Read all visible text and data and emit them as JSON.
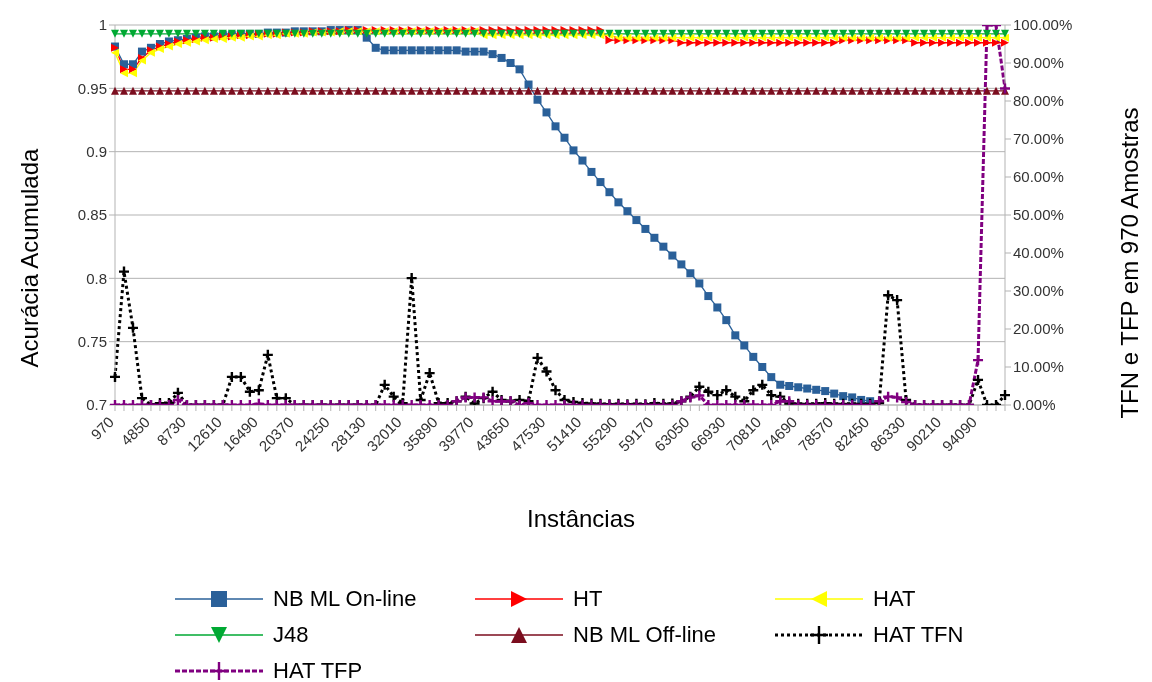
{
  "chart_data": {
    "type": "line",
    "xlabel": "Instâncias",
    "ylabel": "Acurácia Acumulada",
    "y2label": "TFN e TFP em 970 Amostras",
    "categories": [
      "970",
      null,
      null,
      null,
      "4850",
      null,
      null,
      null,
      "8730",
      null,
      null,
      null,
      "12610",
      null,
      null,
      null,
      "16490",
      null,
      null,
      null,
      "20370",
      null,
      null,
      null,
      "24250",
      null,
      null,
      null,
      "28130",
      null,
      null,
      null,
      "32010",
      null,
      null,
      null,
      "35890",
      null,
      null,
      null,
      "39770",
      null,
      null,
      null,
      "43650",
      null,
      null,
      null,
      "47530",
      null,
      null,
      null,
      "51410",
      null,
      null,
      null,
      "55290",
      null,
      null,
      null,
      "59170",
      null,
      null,
      null,
      "63050",
      null,
      null,
      null,
      "66930",
      null,
      null,
      null,
      "70810",
      null,
      null,
      null,
      "74690",
      null,
      null,
      null,
      "78570",
      null,
      null,
      null,
      "82450",
      null,
      null,
      null,
      "86330",
      null,
      null,
      null,
      "90210",
      null,
      null,
      null,
      "94090",
      null,
      null,
      null
    ],
    "ylim": [
      0.7,
      1
    ],
    "yticks": [
      0.7,
      0.75,
      0.8,
      0.85,
      0.9,
      0.95,
      1
    ],
    "y2lim": [
      0,
      100
    ],
    "y2ticks": [
      {
        "value": 0,
        "label": "0.00%"
      },
      {
        "value": 10,
        "label": "10.00%"
      },
      {
        "value": 20,
        "label": "20.00%"
      },
      {
        "value": 30,
        "label": "30.00%"
      },
      {
        "value": 40,
        "label": "40.00%"
      },
      {
        "value": 50,
        "label": "50.00%"
      },
      {
        "value": 60,
        "label": "60.00%"
      },
      {
        "value": 70,
        "label": "70.00%"
      },
      {
        "value": 80,
        "label": "80.00%"
      },
      {
        "value": 90,
        "label": "90.00%"
      },
      {
        "value": 100,
        "label": "100.00%"
      }
    ],
    "grid": "y",
    "legend": "bottom",
    "series": [
      {
        "name": "NB ML On-line",
        "color": "#2a6099",
        "marker": "square",
        "line_style": "solid",
        "values": [
          0.983,
          0.969,
          0.969,
          0.979,
          0.982,
          0.985,
          0.987,
          0.988,
          0.989,
          0.99,
          0.991,
          0.991,
          0.992,
          0.992,
          0.993,
          0.993,
          0.993,
          0.994,
          0.994,
          0.994,
          0.995,
          0.995,
          0.995,
          0.995,
          0.996,
          0.996,
          0.996,
          0.996,
          0.99,
          0.982,
          0.98,
          0.98,
          0.98,
          0.98,
          0.98,
          0.98,
          0.98,
          0.98,
          0.98,
          0.979,
          0.979,
          0.979,
          0.977,
          0.974,
          0.97,
          0.965,
          0.953,
          0.941,
          0.931,
          0.92,
          0.911,
          0.901,
          0.893,
          0.884,
          0.876,
          0.868,
          0.86,
          0.853,
          0.846,
          0.839,
          0.832,
          0.825,
          0.818,
          0.811,
          0.804,
          0.796,
          0.786,
          0.777,
          0.767,
          0.755,
          0.747,
          0.738,
          0.73,
          0.722,
          0.716,
          0.715,
          0.714,
          0.713,
          0.712,
          0.711,
          0.709,
          0.707,
          0.706,
          0.704,
          0.703,
          null,
          null,
          null,
          null,
          null,
          null,
          null,
          null,
          null,
          null,
          null,
          null,
          null,
          null,
          null
        ]
      },
      {
        "name": "HT",
        "color": "#ff0000",
        "marker": "triangle-right",
        "line_style": "solid",
        "values": [
          0.982,
          0.965,
          0.965,
          0.974,
          0.98,
          0.983,
          0.985,
          0.987,
          0.988,
          0.989,
          0.99,
          0.99,
          0.991,
          0.991,
          0.992,
          0.992,
          0.993,
          0.993,
          0.993,
          0.994,
          0.994,
          0.994,
          0.995,
          0.995,
          0.995,
          0.995,
          0.996,
          0.996,
          0.996,
          0.996,
          0.996,
          0.996,
          0.996,
          0.996,
          0.996,
          0.996,
          0.996,
          0.996,
          0.996,
          0.996,
          0.996,
          0.996,
          0.996,
          0.996,
          0.996,
          0.996,
          0.996,
          0.996,
          0.996,
          0.996,
          0.996,
          0.996,
          0.996,
          0.996,
          0.996,
          0.988,
          0.988,
          0.988,
          0.988,
          0.988,
          0.988,
          0.988,
          0.988,
          0.986,
          0.986,
          0.986,
          0.986,
          0.986,
          0.986,
          0.986,
          0.986,
          0.986,
          0.986,
          0.986,
          0.986,
          0.986,
          0.986,
          0.986,
          0.986,
          0.986,
          0.986,
          0.988,
          0.988,
          0.988,
          0.988,
          0.988,
          0.988,
          0.988,
          0.988,
          0.986,
          0.986,
          0.986,
          0.986,
          0.986,
          0.986,
          0.986,
          0.986,
          0.986,
          0.986,
          0.986
        ]
      },
      {
        "name": "HAT",
        "color": "#ffff00",
        "marker": "triangle-left",
        "line_style": "solid",
        "values": [
          0.978,
          0.962,
          0.962,
          0.972,
          0.978,
          0.981,
          0.983,
          0.985,
          0.986,
          0.987,
          0.988,
          0.989,
          0.989,
          0.99,
          0.99,
          0.991,
          0.991,
          0.992,
          0.992,
          0.993,
          0.993,
          0.993,
          0.994,
          0.994,
          0.994,
          0.995,
          0.995,
          0.995,
          0.995,
          0.995,
          0.995,
          0.995,
          0.995,
          0.995,
          0.995,
          0.995,
          0.995,
          0.995,
          0.995,
          0.995,
          0.995,
          0.992,
          0.992,
          0.992,
          0.992,
          0.992,
          0.992,
          0.992,
          0.992,
          0.992,
          0.992,
          0.992,
          0.992,
          0.992,
          0.992,
          0.992,
          0.99,
          0.99,
          0.99,
          0.99,
          0.99,
          0.99,
          0.99,
          0.99,
          0.99,
          0.99,
          0.99,
          0.99,
          0.99,
          0.99,
          0.99,
          0.99,
          0.99,
          0.99,
          0.99,
          0.99,
          0.99,
          0.99,
          0.99,
          0.99,
          0.99,
          0.99,
          0.99,
          0.99,
          0.99,
          0.99,
          0.99,
          0.99,
          0.99,
          0.99,
          0.99,
          0.99,
          0.99,
          0.99,
          0.99,
          0.99,
          0.99,
          0.99,
          0.99,
          0.99
        ]
      },
      {
        "name": "J48",
        "color": "#00a933",
        "marker": "triangle-down",
        "line_style": "solid",
        "values": [
          0.993,
          0.993,
          0.993,
          0.993,
          0.993,
          0.993,
          0.993,
          0.993,
          0.993,
          0.993,
          0.993,
          0.993,
          0.993,
          0.993,
          0.993,
          0.993,
          0.993,
          0.993,
          0.993,
          0.993,
          0.993,
          0.993,
          0.993,
          0.993,
          0.993,
          0.993,
          0.993,
          0.993,
          0.993,
          0.993,
          0.993,
          0.993,
          0.993,
          0.993,
          0.993,
          0.993,
          0.993,
          0.993,
          0.993,
          0.993,
          0.993,
          0.993,
          0.993,
          0.993,
          0.993,
          0.993,
          0.993,
          0.993,
          0.993,
          0.993,
          0.993,
          0.993,
          0.993,
          0.993,
          0.993,
          0.993,
          0.993,
          0.993,
          0.993,
          0.993,
          0.993,
          0.993,
          0.993,
          0.993,
          0.993,
          0.993,
          0.993,
          0.993,
          0.993,
          0.993,
          0.993,
          0.993,
          0.993,
          0.993,
          0.993,
          0.993,
          0.993,
          0.993,
          0.993,
          0.993,
          0.993,
          0.993,
          0.993,
          0.993,
          0.993,
          0.993,
          0.993,
          0.993,
          0.993,
          0.993,
          0.993,
          0.993,
          0.993,
          0.993,
          0.993,
          0.993,
          0.993,
          0.993,
          0.993,
          0.993
        ]
      },
      {
        "name": "NB ML Off-line",
        "color": "#7b0d1e",
        "marker": "triangle",
        "line_style": "solid",
        "values": [
          0.948,
          0.948,
          0.948,
          0.948,
          0.948,
          0.948,
          0.948,
          0.948,
          0.948,
          0.948,
          0.948,
          0.948,
          0.948,
          0.948,
          0.948,
          0.948,
          0.948,
          0.948,
          0.948,
          0.948,
          0.948,
          0.948,
          0.948,
          0.948,
          0.948,
          0.948,
          0.948,
          0.948,
          0.948,
          0.948,
          0.948,
          0.948,
          0.948,
          0.948,
          0.948,
          0.948,
          0.948,
          0.948,
          0.948,
          0.948,
          0.948,
          0.948,
          0.948,
          0.948,
          0.948,
          0.948,
          0.948,
          0.948,
          0.948,
          0.948,
          0.948,
          0.948,
          0.948,
          0.948,
          0.948,
          0.948,
          0.948,
          0.948,
          0.948,
          0.948,
          0.948,
          0.948,
          0.948,
          0.948,
          0.948,
          0.948,
          0.948,
          0.948,
          0.948,
          0.948,
          0.948,
          0.948,
          0.948,
          0.948,
          0.948,
          0.948,
          0.948,
          0.948,
          0.948,
          0.948,
          0.948,
          0.948,
          0.948,
          0.948,
          0.948,
          0.948,
          0.948,
          0.948,
          0.948,
          0.948,
          0.948,
          0.948,
          0.948,
          0.948,
          0.948,
          0.948,
          0.948,
          0.948,
          0.948,
          0.948
        ]
      },
      {
        "name": "HAT TFN",
        "color": "#000000",
        "marker": "cross",
        "line_style": "dotted",
        "axis": "y2",
        "values": [
          7.4,
          35.1,
          20.3,
          1.8,
          0,
          0.5,
          0.5,
          3.2,
          0,
          0,
          0,
          0,
          0,
          7.4,
          7.4,
          3.5,
          3.9,
          13.2,
          1.8,
          1.8,
          0,
          0,
          0,
          0,
          0,
          0,
          0,
          0,
          0,
          0,
          5.3,
          2.2,
          0.5,
          33.4,
          1.3,
          8.4,
          0.5,
          0.5,
          1,
          2.2,
          0.4,
          1.8,
          3.5,
          1.3,
          1,
          1.3,
          1,
          12.4,
          8.8,
          3.9,
          1.3,
          0.8,
          0.5,
          0.4,
          0.3,
          0.2,
          0.3,
          0.2,
          0.3,
          0.2,
          0.5,
          0.3,
          0.4,
          1,
          2.2,
          4.8,
          3.5,
          2.6,
          3.9,
          2.2,
          1,
          3.9,
          5.3,
          2.6,
          2.2,
          0.4,
          0.3,
          0.3,
          0.3,
          0.5,
          0.3,
          0.3,
          0.3,
          0.3,
          0.3,
          0.5,
          28.9,
          27.6,
          1.3,
          0,
          0,
          0,
          0,
          0,
          0,
          0,
          6.6,
          0,
          0,
          2.6
        ]
      },
      {
        "name": "HAT TFP",
        "color": "#800080",
        "marker": "cross",
        "line_style": "dashed",
        "axis": "y2",
        "values": [
          0,
          0,
          0,
          0,
          0,
          0,
          0,
          1.3,
          0,
          0,
          0,
          0,
          0,
          0,
          0,
          0,
          0.3,
          0,
          0,
          0,
          0,
          0,
          0,
          0,
          0,
          0,
          0,
          0,
          0,
          0,
          0,
          0,
          0,
          0,
          0,
          0,
          0,
          0,
          1,
          2,
          2,
          2,
          1,
          1,
          1,
          0,
          0.5,
          0,
          0,
          0,
          0,
          0,
          0,
          0,
          0,
          0,
          0,
          0,
          0,
          0,
          0,
          0,
          0,
          1,
          2,
          2.5,
          0,
          0,
          0,
          0,
          0,
          0,
          0,
          0,
          1,
          1,
          0,
          0,
          0,
          0,
          0,
          0,
          0,
          0,
          0,
          1,
          2.2,
          2,
          0.8,
          0,
          0,
          0,
          0,
          0,
          0,
          0,
          11.8,
          100,
          100,
          83.3
        ]
      }
    ]
  }
}
